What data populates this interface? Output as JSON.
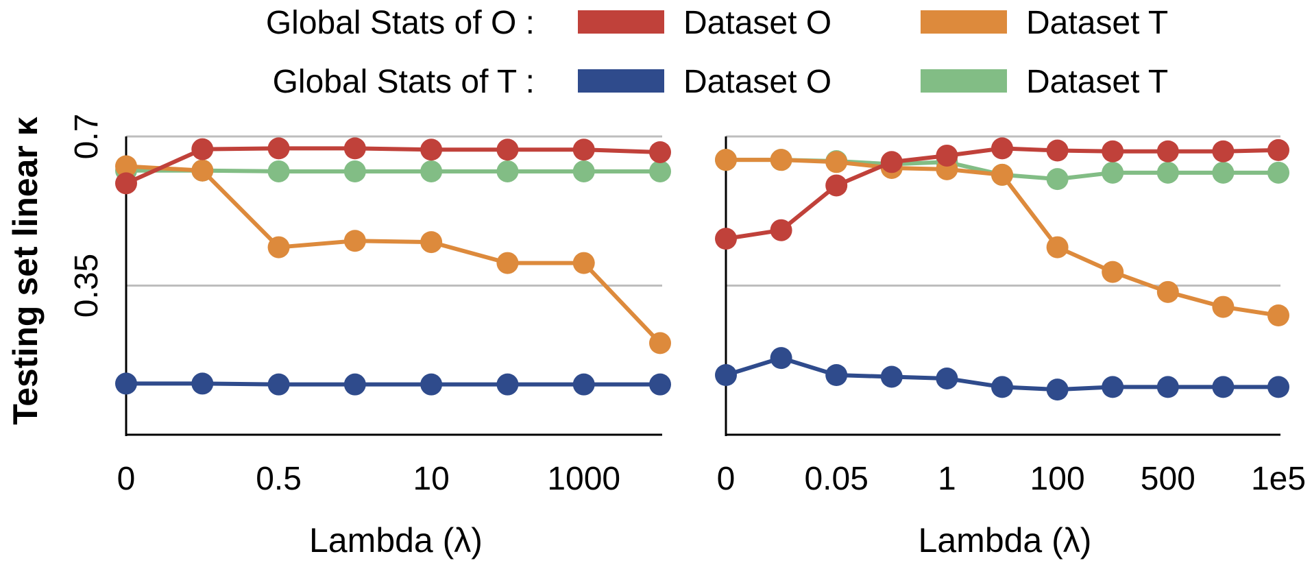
{
  "legend": {
    "row_labels": [
      "Global Stats of O :",
      "Global Stats of T :"
    ],
    "entries": [
      {
        "series_key": "O_on_O",
        "label": "Dataset O",
        "color": "#c0413a"
      },
      {
        "series_key": "O_on_T",
        "label": "Dataset T",
        "color": "#dd8a3c"
      },
      {
        "series_key": "T_on_O",
        "label": "Dataset O",
        "color": "#2f4b8c"
      },
      {
        "series_key": "T_on_T",
        "label": "Dataset T",
        "color": "#82bd85"
      }
    ]
  },
  "chart_data": [
    {
      "type": "line",
      "title": "",
      "xlabel": "Lambda (λ)",
      "ylabel": "Testing set linear κ",
      "categories": [
        "0",
        "",
        "0.5",
        "",
        "10",
        "",
        "1000",
        ""
      ],
      "x_tick_labels": [
        "0",
        "0.5",
        "10",
        "1000"
      ],
      "y_ticks": [
        0.35,
        0.7
      ],
      "y_tick_labels": [
        "0.35",
        "0.7"
      ],
      "ylim": [
        0.0,
        0.7
      ],
      "grid": "horizontal at ticks",
      "series": [
        {
          "name": "Global Stats of O : Dataset O",
          "key": "O_on_O",
          "color": "#c0413a",
          "values": [
            0.59,
            0.67,
            0.672,
            0.672,
            0.669,
            0.669,
            0.669,
            0.663
          ]
        },
        {
          "name": "Global Stats of O : Dataset T",
          "key": "O_on_T",
          "color": "#dd8a3c",
          "values": [
            0.63,
            0.62,
            0.44,
            0.455,
            0.452,
            0.403,
            0.403,
            0.215
          ]
        },
        {
          "name": "Global Stats of T : Dataset O",
          "key": "T_on_O",
          "color": "#2f4b8c",
          "values": [
            0.12,
            0.12,
            0.118,
            0.118,
            0.118,
            0.118,
            0.118,
            0.118
          ]
        },
        {
          "name": "Global Stats of T : Dataset T",
          "key": "T_on_T",
          "color": "#82bd85",
          "values": [
            0.62,
            0.62,
            0.618,
            0.618,
            0.618,
            0.618,
            0.618,
            0.618
          ]
        }
      ]
    },
    {
      "type": "line",
      "title": "",
      "xlabel": "Lambda (λ)",
      "ylabel": "",
      "categories": [
        "0",
        "",
        "0.05",
        "",
        "1",
        "",
        "100",
        "",
        "500",
        "",
        "1e5"
      ],
      "x_tick_labels": [
        "0",
        "0.05",
        "1",
        "100",
        "500",
        "1e5"
      ],
      "y_ticks": [
        0.35,
        0.7
      ],
      "y_tick_labels": [
        "",
        ""
      ],
      "ylim": [
        0.0,
        0.7
      ],
      "grid": "horizontal at ticks",
      "series": [
        {
          "name": "Global Stats of O : Dataset O",
          "key": "O_on_O",
          "color": "#c0413a",
          "values": [
            0.46,
            0.48,
            0.585,
            0.64,
            0.655,
            0.672,
            0.667,
            0.665,
            0.665,
            0.665,
            0.668
          ]
        },
        {
          "name": "Global Stats of O : Dataset T",
          "key": "O_on_T",
          "color": "#dd8a3c",
          "values": [
            0.645,
            0.645,
            0.64,
            0.626,
            0.623,
            0.61,
            0.44,
            0.382,
            0.335,
            0.3,
            0.28
          ]
        },
        {
          "name": "Global Stats of T : Dataset O",
          "key": "T_on_O",
          "color": "#2f4b8c",
          "values": [
            0.14,
            0.18,
            0.14,
            0.136,
            0.132,
            0.112,
            0.106,
            0.112,
            0.112,
            0.112,
            0.112
          ]
        },
        {
          "name": "Global Stats of T : Dataset T",
          "key": "T_on_T",
          "color": "#82bd85",
          "values": [
            0.645,
            0.645,
            0.642,
            0.635,
            0.64,
            0.61,
            0.6,
            0.615,
            0.615,
            0.615,
            0.615
          ]
        }
      ]
    }
  ]
}
